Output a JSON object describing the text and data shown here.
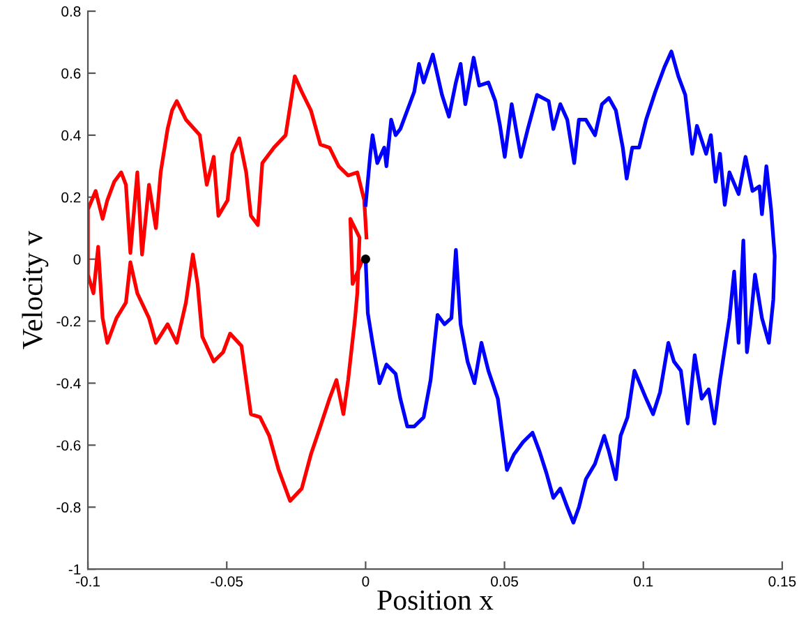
{
  "chart_data": {
    "type": "line",
    "xlabel": "Position x",
    "ylabel": "Velocity v",
    "xlim": [
      -0.1,
      0.15
    ],
    "ylim": [
      -1,
      0.8
    ],
    "xticks": [
      -0.1,
      -0.05,
      0,
      0.05,
      0.1,
      0.15
    ],
    "yticks": [
      -1,
      -0.8,
      -0.6,
      -0.4,
      -0.2,
      0,
      0.2,
      0.4,
      0.6,
      0.8
    ],
    "grid": false,
    "legend": false,
    "series": [
      {
        "color": "#ff0000",
        "x": [
          0.0003,
          -0.0005,
          -0.003,
          -0.0063,
          -0.0097,
          -0.013,
          -0.0163,
          -0.0197,
          -0.023,
          -0.0255,
          -0.0288,
          -0.033,
          -0.0372,
          -0.0388,
          -0.0413,
          -0.043,
          -0.0455,
          -0.048,
          -0.0497,
          -0.053,
          -0.0547,
          -0.0572,
          -0.0597,
          -0.0647,
          -0.068,
          -0.0697,
          -0.0713,
          -0.0738,
          -0.0755,
          -0.078,
          -0.0805,
          -0.0822,
          -0.0847,
          -0.0863,
          -0.088,
          -0.0905,
          -0.093,
          -0.0947,
          -0.0972,
          -0.1,
          -0.1,
          -0.098,
          -0.0963,
          -0.0947,
          -0.093,
          -0.0897,
          -0.0863,
          -0.0847,
          -0.0822,
          -0.078,
          -0.0755,
          -0.0713,
          -0.068,
          -0.0647,
          -0.0622,
          -0.0605,
          -0.0588,
          -0.0547,
          -0.0513,
          -0.0488,
          -0.0447,
          -0.0413,
          -0.038,
          -0.0347,
          -0.0313,
          -0.0272,
          -0.023,
          -0.0197,
          -0.0163,
          -0.013,
          -0.0105,
          -0.008,
          -0.0063,
          -0.0038,
          -0.003,
          -0.0022,
          -0.0055,
          -0.0047,
          -0.001
        ],
        "values": [
          0.07,
          0.19,
          0.28,
          0.27,
          0.3,
          0.36,
          0.37,
          0.48,
          0.54,
          0.59,
          0.4,
          0.36,
          0.31,
          0.11,
          0.14,
          0.28,
          0.39,
          0.34,
          0.19,
          0.14,
          0.33,
          0.24,
          0.4,
          0.45,
          0.51,
          0.48,
          0.42,
          0.28,
          0.1,
          0.24,
          0.015,
          0.28,
          0.02,
          0.24,
          0.28,
          0.25,
          0.19,
          0.13,
          0.22,
          0.16,
          -0.05,
          -0.11,
          0.04,
          -0.19,
          -0.27,
          -0.19,
          -0.14,
          -0.01,
          -0.11,
          -0.19,
          -0.27,
          -0.21,
          -0.27,
          -0.14,
          0.015,
          -0.08,
          -0.25,
          -0.33,
          -0.3,
          -0.24,
          -0.28,
          -0.5,
          -0.51,
          -0.57,
          -0.68,
          -0.78,
          -0.74,
          -0.63,
          -0.54,
          -0.45,
          -0.39,
          -0.5,
          -0.39,
          -0.19,
          -0.11,
          0.07,
          0.13,
          -0.08,
          0.0
        ]
      },
      {
        "color": "#0000ff",
        "x": [
          0.0,
          0.0017,
          0.0025,
          0.0042,
          0.0067,
          0.0075,
          0.0092,
          0.0108,
          0.0125,
          0.015,
          0.0175,
          0.0192,
          0.0209,
          0.0242,
          0.0275,
          0.03,
          0.0325,
          0.0342,
          0.0359,
          0.0389,
          0.0409,
          0.0442,
          0.0467,
          0.0484,
          0.0501,
          0.0526,
          0.0559,
          0.0584,
          0.0617,
          0.0659,
          0.0676,
          0.0701,
          0.0726,
          0.0751,
          0.0768,
          0.0793,
          0.0826,
          0.0851,
          0.0876,
          0.0901,
          0.0926,
          0.094,
          0.096,
          0.0985,
          0.101,
          0.1043,
          0.1076,
          0.1101,
          0.1126,
          0.1151,
          0.1176,
          0.1193,
          0.1226,
          0.1243,
          0.126,
          0.1276,
          0.1293,
          0.131,
          0.1343,
          0.1368,
          0.1393,
          0.1418,
          0.1427,
          0.1443,
          0.146,
          0.1473,
          0.1468,
          0.1452,
          0.1427,
          0.1402,
          0.1385,
          0.1373,
          0.136,
          0.1343,
          0.1327,
          0.131,
          0.1276,
          0.1256,
          0.1235,
          0.121,
          0.1185,
          0.116,
          0.1135,
          0.111,
          0.109,
          0.106,
          0.1035,
          0.101,
          0.0968,
          0.0943,
          0.0918,
          0.0901,
          0.0876,
          0.0859,
          0.0826,
          0.0793,
          0.0768,
          0.0748,
          0.0726,
          0.0701,
          0.0676,
          0.0651,
          0.0626,
          0.0601,
          0.0567,
          0.0534,
          0.0509,
          0.0476,
          0.0442,
          0.0417,
          0.0392,
          0.0367,
          0.0342,
          0.0325,
          0.0309,
          0.0284,
          0.0259,
          0.0234,
          0.0209,
          0.0175,
          0.015,
          0.0125,
          0.0108,
          0.0075,
          0.005,
          0.0025,
          0.0008,
          0.0
        ],
        "values": [
          0.175,
          0.34,
          0.4,
          0.31,
          0.36,
          0.3,
          0.45,
          0.4,
          0.42,
          0.48,
          0.54,
          0.63,
          0.57,
          0.66,
          0.53,
          0.46,
          0.57,
          0.63,
          0.5,
          0.65,
          0.56,
          0.57,
          0.51,
          0.43,
          0.33,
          0.5,
          0.33,
          0.42,
          0.53,
          0.51,
          0.42,
          0.5,
          0.45,
          0.31,
          0.45,
          0.45,
          0.4,
          0.5,
          0.52,
          0.48,
          0.36,
          0.26,
          0.36,
          0.36,
          0.45,
          0.54,
          0.62,
          0.67,
          0.59,
          0.53,
          0.34,
          0.43,
          0.34,
          0.4,
          0.25,
          0.34,
          0.175,
          0.28,
          0.21,
          0.33,
          0.22,
          0.235,
          0.145,
          0.3,
          0.16,
          0.01,
          -0.13,
          -0.27,
          -0.19,
          -0.05,
          -0.21,
          -0.3,
          0.06,
          -0.27,
          -0.04,
          -0.19,
          -0.39,
          -0.53,
          -0.42,
          -0.45,
          -0.31,
          -0.53,
          -0.36,
          -0.33,
          -0.27,
          -0.43,
          -0.5,
          -0.45,
          -0.36,
          -0.51,
          -0.57,
          -0.71,
          -0.62,
          -0.57,
          -0.66,
          -0.71,
          -0.8,
          -0.85,
          -0.8,
          -0.74,
          -0.77,
          -0.69,
          -0.62,
          -0.56,
          -0.59,
          -0.63,
          -0.68,
          -0.45,
          -0.36,
          -0.27,
          -0.4,
          -0.33,
          -0.21,
          0.03,
          -0.19,
          -0.21,
          -0.18,
          -0.39,
          -0.51,
          -0.54,
          -0.54,
          -0.45,
          -0.37,
          -0.34,
          -0.4,
          -0.27,
          -0.175,
          0.0
        ]
      },
      {
        "type": "scatter",
        "color": "#000000",
        "marker": "circle",
        "x": [
          0
        ],
        "values": [
          0
        ]
      }
    ]
  }
}
